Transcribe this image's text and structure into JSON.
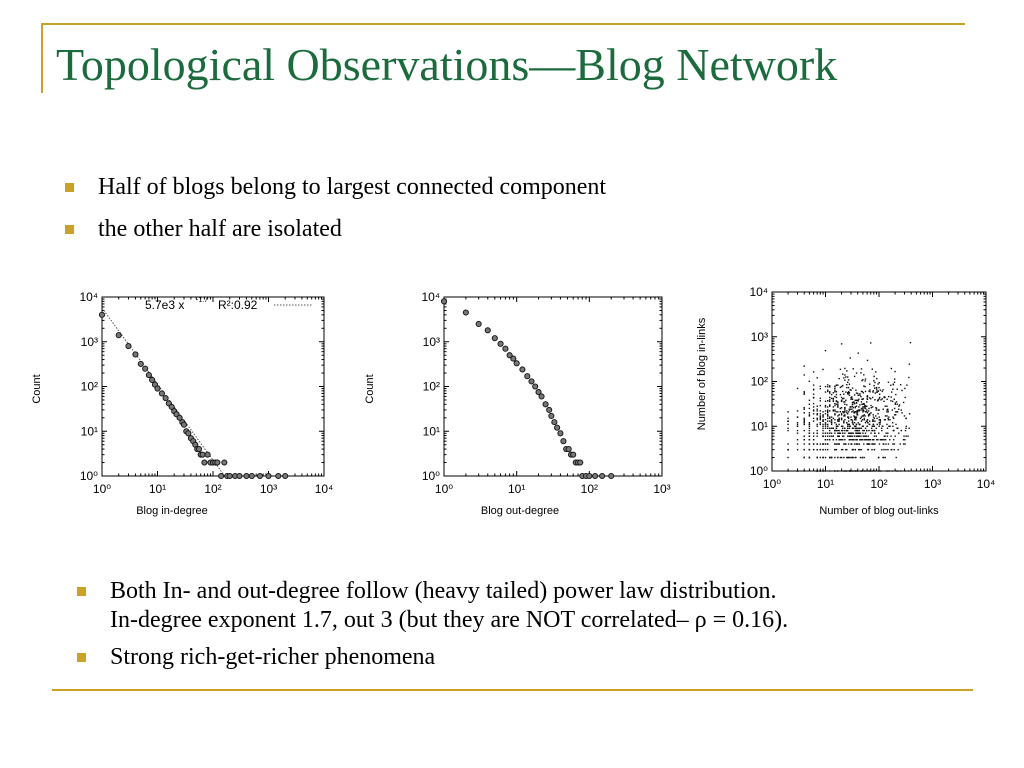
{
  "slide": {
    "title": "Topological Observations—Blog Network",
    "top_bullets": [
      "Half of blogs belong to largest connected component",
      "the other half are isolated"
    ],
    "bottom_bullets": [
      "Both In- and out-degree follow (heavy tailed) power law distribution.",
      "In-degree exponent 1.7, out 3 (but they are NOT correlated– ρ = 0.16).",
      "Strong rich-get-richer phenomena"
    ],
    "accent_color": "#c9a227",
    "title_color": "#1b6b3d"
  },
  "chart_data": [
    {
      "type": "scatter",
      "xlabel": "Blog in-degree",
      "ylabel": "Count",
      "xscale": "log",
      "yscale": "log",
      "xlim": [
        1,
        10000
      ],
      "ylim": [
        1,
        10000
      ],
      "x_tick_labels": [
        "10⁰",
        "10¹",
        "10²",
        "10³",
        "10⁴"
      ],
      "y_tick_labels": [
        "10⁰",
        "10¹",
        "10²",
        "10³",
        "10⁴"
      ],
      "legend": {
        "fit_label": "5.7e3 x",
        "fit_exponent": "-1.7",
        "r2_label": "R²:0.92",
        "placement": "top-right"
      },
      "fit_line": {
        "coefficient": 5700,
        "exponent": -1.7
      },
      "series": [
        {
          "x": [
            1,
            2,
            3,
            4,
            5,
            6,
            7,
            8,
            9,
            10,
            12,
            14,
            16,
            18,
            20,
            22,
            25,
            28,
            30,
            33,
            36,
            40,
            44,
            48,
            52,
            56,
            60,
            65,
            70,
            80,
            90,
            100,
            110,
            120,
            140,
            160,
            180,
            200,
            250,
            300,
            400,
            500,
            700,
            1000,
            1500,
            2000
          ],
          "y": [
            4000,
            1400,
            800,
            520,
            320,
            250,
            180,
            140,
            110,
            90,
            70,
            55,
            42,
            35,
            28,
            24,
            20,
            16,
            14,
            10,
            9,
            7,
            6,
            5,
            4,
            4,
            3,
            3,
            2,
            3,
            2,
            2,
            2,
            2,
            1,
            2,
            1,
            1,
            1,
            1,
            1,
            1,
            1,
            1,
            1,
            1
          ]
        }
      ]
    },
    {
      "type": "scatter",
      "xlabel": "Blog out-degree",
      "ylabel": "Count",
      "xscale": "log",
      "yscale": "log",
      "xlim": [
        1,
        1000
      ],
      "ylim": [
        1,
        10000
      ],
      "x_tick_labels": [
        "10⁰",
        "10¹",
        "10²",
        "10³"
      ],
      "y_tick_labels": [
        "10⁰",
        "10¹",
        "10²",
        "10³",
        "10⁴"
      ],
      "series": [
        {
          "x": [
            1,
            2,
            3,
            4,
            5,
            6,
            7,
            8,
            9,
            10,
            12,
            14,
            16,
            18,
            20,
            22,
            25,
            28,
            30,
            33,
            36,
            40,
            44,
            48,
            52,
            56,
            60,
            65,
            70,
            75,
            80,
            90,
            100,
            120,
            150,
            200
          ],
          "y": [
            8000,
            4500,
            2500,
            1800,
            1200,
            900,
            700,
            500,
            420,
            330,
            240,
            170,
            130,
            100,
            75,
            60,
            40,
            30,
            22,
            16,
            12,
            9,
            6,
            4,
            4,
            3,
            3,
            2,
            2,
            2,
            1,
            1,
            1,
            1,
            1,
            1
          ]
        }
      ]
    },
    {
      "type": "scatter",
      "xlabel": "Number of blog out-links",
      "ylabel": "Number of blog in-links",
      "xscale": "log",
      "yscale": "log",
      "xlim": [
        1,
        10000
      ],
      "ylim": [
        1,
        10000
      ],
      "x_tick_labels": [
        "10⁰",
        "10¹",
        "10²",
        "10³",
        "10⁴"
      ],
      "y_tick_labels": [
        "10⁰",
        "10¹",
        "10²",
        "10³",
        "10⁴"
      ],
      "cloud": {
        "x_center": 30,
        "x_spread_decades": 0.5,
        "y_center": 12,
        "y_spread_decades": 0.55,
        "x_max": 400,
        "y_max": 1500,
        "count": 1100,
        "correlation": 0.16
      }
    }
  ]
}
